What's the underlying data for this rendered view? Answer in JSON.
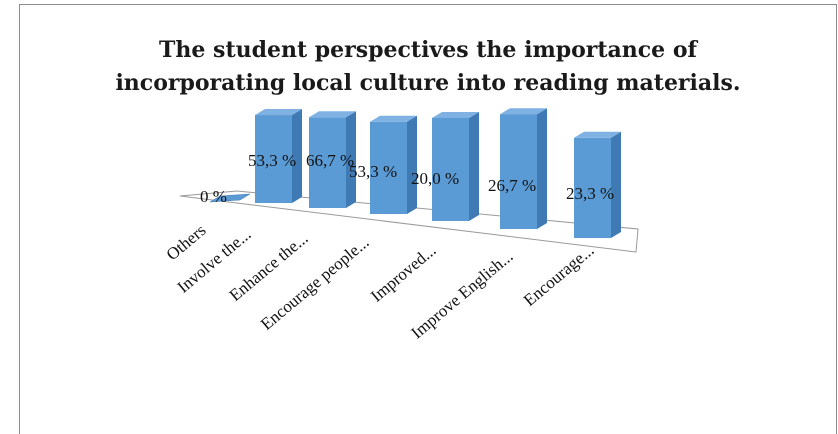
{
  "chart_data": {
    "type": "bar",
    "title_lines": [
      "The student perspectives the importance of",
      "incorporating local culture into reading materials."
    ],
    "categories": [
      "Others",
      "Involve the...",
      "Enhance the...",
      "Encourage people...",
      "Improved...",
      "Improve English...",
      "Encourage..."
    ],
    "values": [
      0,
      53.3,
      66.7,
      53.3,
      20.0,
      26.7,
      23.3
    ],
    "value_labels": [
      "0 %",
      "53,3 %",
      "66,7 %",
      "53,3 %",
      "20,0 %",
      "26,7 %",
      "23,3 %"
    ],
    "bar_color": "#5b9bd5",
    "grid": false,
    "legend": "none"
  }
}
